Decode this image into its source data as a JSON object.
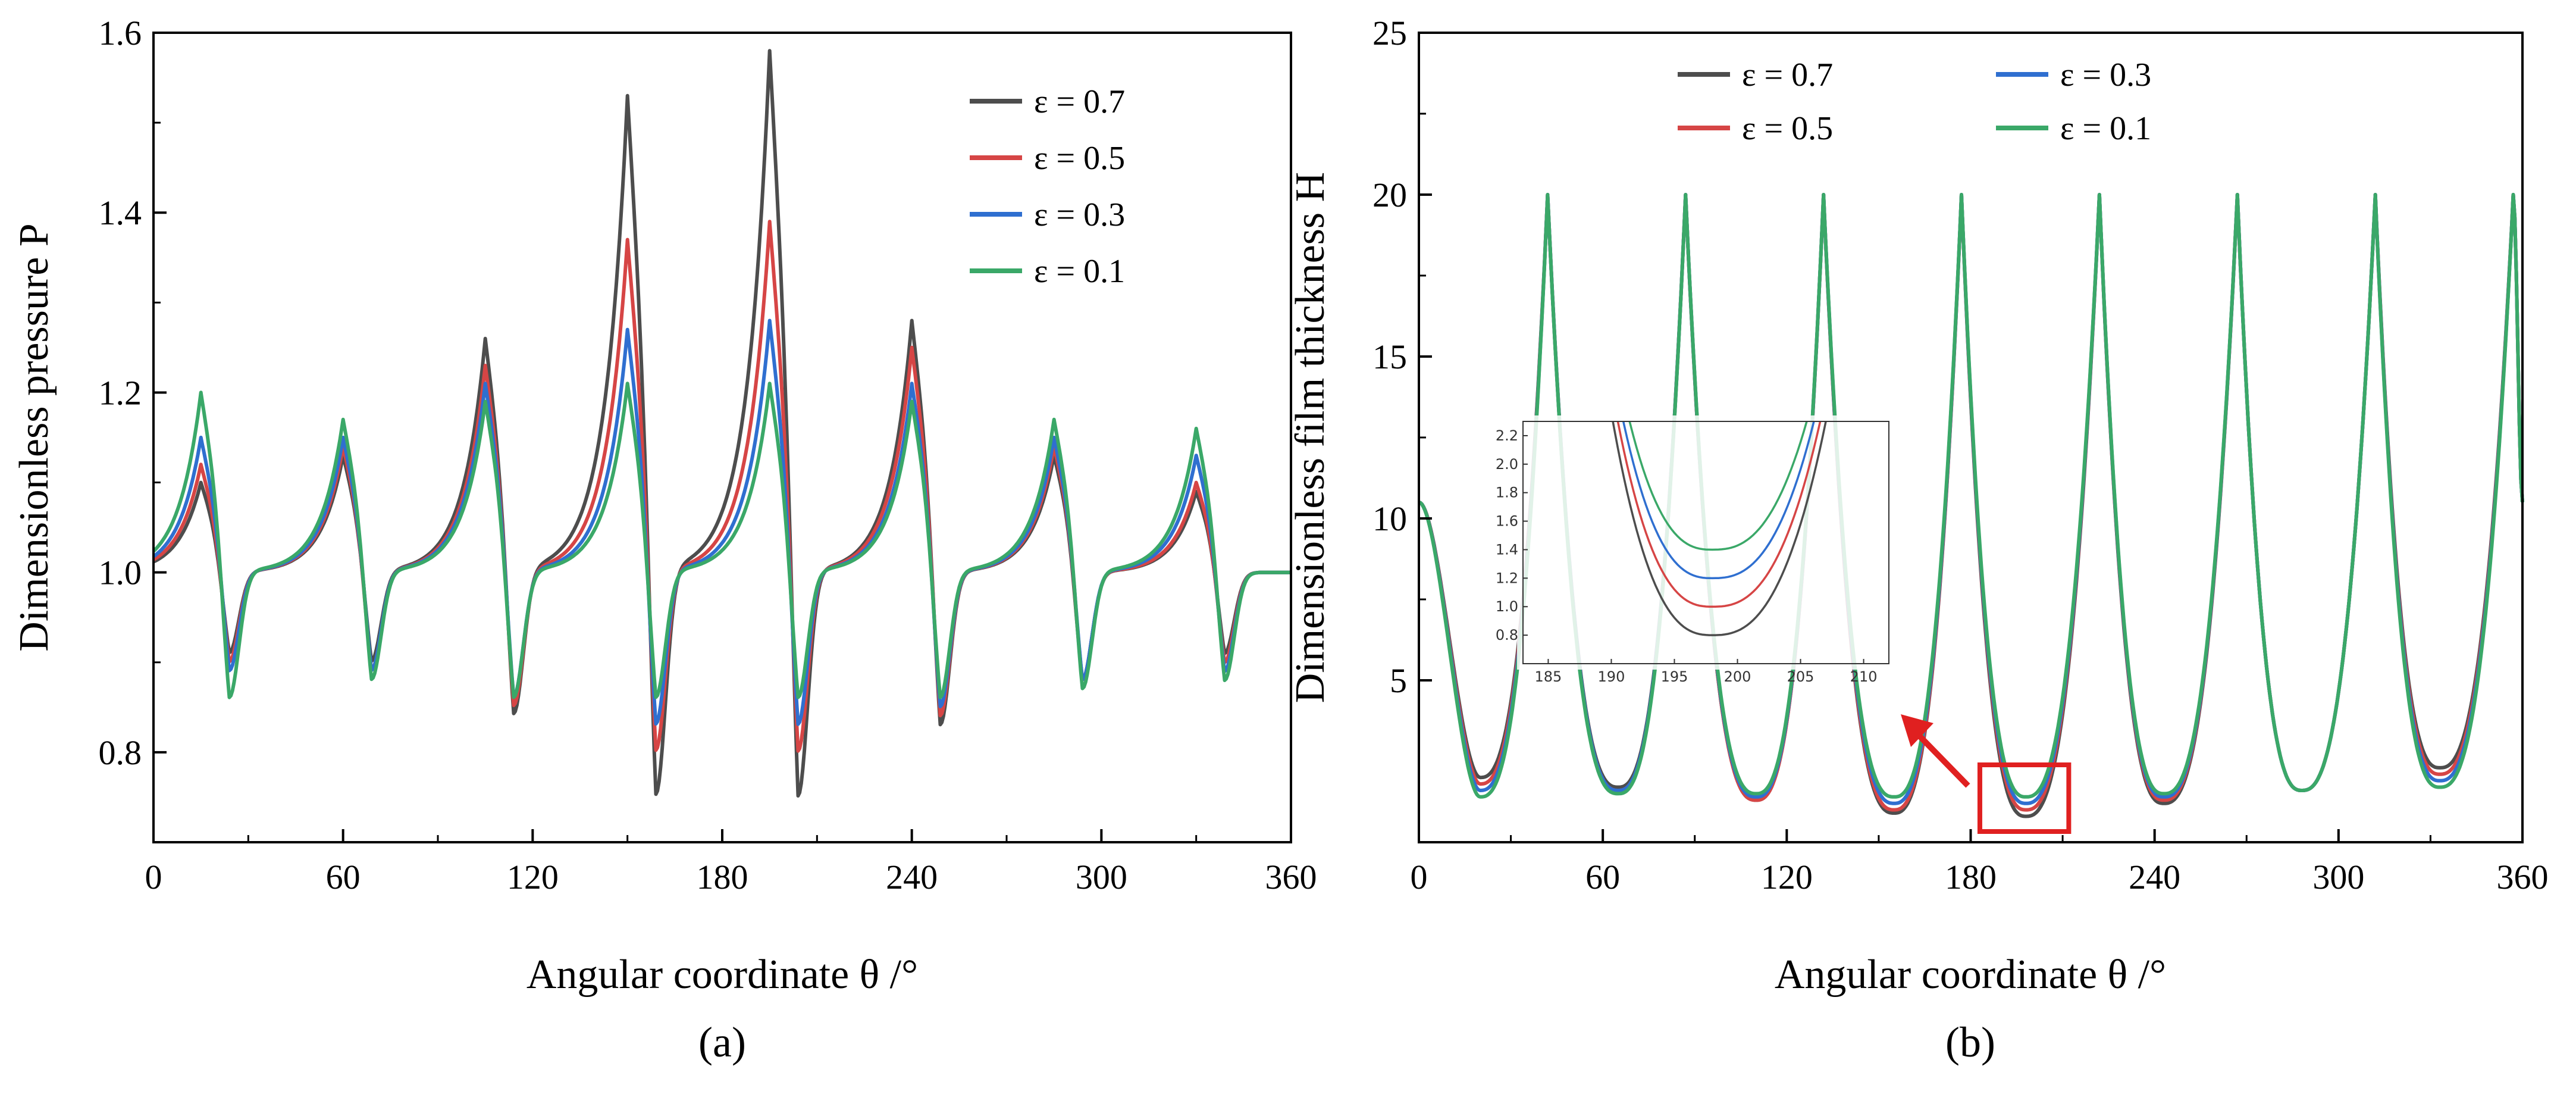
{
  "colors": {
    "eps07": "#4d4d4d",
    "eps05": "#d64545",
    "eps03": "#2f6fd0",
    "eps01": "#3aa868",
    "highlight": "#e02020"
  },
  "chart_data": [
    {
      "type": "line",
      "panel_label": "(a)",
      "xlabel": "Angular coordinate θ /°",
      "ylabel": "Dimensionless pressure P",
      "xlim": [
        0,
        360
      ],
      "ylim": [
        0.7,
        1.6
      ],
      "xticks": [
        "0",
        "60",
        "120",
        "180",
        "240",
        "300",
        "360"
      ],
      "yticks": [
        "0.8",
        "1.0",
        "1.2",
        "1.4",
        "1.6"
      ],
      "legend": [
        "ε = 0.7",
        "ε = 0.5",
        "ε = 0.3",
        "ε = 0.1"
      ],
      "peaks": {
        "centers": [
          15,
          60,
          105,
          150,
          195,
          240,
          285,
          330
        ],
        "eps07": {
          "max": [
            1.1,
            1.13,
            1.26,
            1.53,
            1.58,
            1.28,
            1.13,
            1.09
          ],
          "min": [
            0.91,
            0.9,
            0.84,
            0.75,
            0.75,
            0.83,
            0.88,
            0.91
          ]
        },
        "eps05": {
          "max": [
            1.12,
            1.14,
            1.23,
            1.37,
            1.39,
            1.25,
            1.14,
            1.1
          ],
          "min": [
            0.9,
            0.89,
            0.85,
            0.8,
            0.8,
            0.84,
            0.88,
            0.9
          ]
        },
        "eps03": {
          "max": [
            1.15,
            1.15,
            1.21,
            1.27,
            1.28,
            1.21,
            1.15,
            1.13
          ],
          "min": [
            0.89,
            0.89,
            0.86,
            0.83,
            0.83,
            0.85,
            0.88,
            0.89
          ]
        },
        "eps01": {
          "max": [
            1.2,
            1.17,
            1.19,
            1.21,
            1.21,
            1.19,
            1.17,
            1.16
          ],
          "min": [
            0.86,
            0.88,
            0.86,
            0.86,
            0.86,
            0.86,
            0.87,
            0.88
          ]
        }
      }
    },
    {
      "type": "line",
      "panel_label": "(b)",
      "xlabel": "Angular coordinate θ /°",
      "ylabel": "Dimensionless film thickness H",
      "xlim": [
        0,
        360
      ],
      "ylim": [
        0,
        25
      ],
      "xticks": [
        "0",
        "60",
        "120",
        "180",
        "240",
        "300",
        "360"
      ],
      "yticks": [
        "5",
        "10",
        "15",
        "20",
        "25"
      ],
      "legend": [
        "ε = 0.7",
        "ε = 0.5",
        "ε = 0.3",
        "ε = 0.1"
      ],
      "peak_positions": [
        42,
        87,
        132,
        177,
        222,
        267,
        312,
        357
      ],
      "peak_value": 20,
      "minima": {
        "positions": [
          20,
          65,
          110,
          155,
          198,
          243,
          288,
          333
        ],
        "eps07": [
          2.0,
          1.7,
          1.3,
          0.9,
          0.8,
          1.2,
          1.6,
          2.3
        ],
        "eps05": [
          1.8,
          1.6,
          1.3,
          1.0,
          1.0,
          1.3,
          1.6,
          2.1
        ],
        "eps03": [
          1.6,
          1.6,
          1.4,
          1.2,
          1.2,
          1.4,
          1.6,
          1.9
        ],
        "eps01": [
          1.4,
          1.5,
          1.5,
          1.4,
          1.4,
          1.5,
          1.6,
          1.7
        ]
      },
      "inset": {
        "xlim": [
          183,
          212
        ],
        "ylim": [
          0.6,
          2.3
        ],
        "xticks": [
          "185",
          "190",
          "195",
          "200",
          "205",
          "210"
        ],
        "yticks": [
          "0.8",
          "1.0",
          "1.2",
          "1.4",
          "1.6",
          "1.8",
          "2.0",
          "2.2"
        ],
        "highlight_x": [
          183,
          212
        ]
      }
    }
  ]
}
